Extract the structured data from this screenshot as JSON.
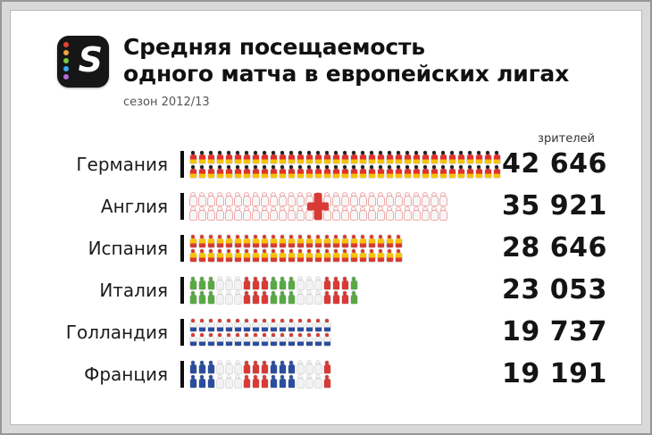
{
  "logo": {
    "letter": "S",
    "dot_colors": [
      "#e8432d",
      "#f2a33c",
      "#7ac943",
      "#3fa9f5",
      "#b96ad9"
    ]
  },
  "header": {
    "title_line1": "Средняя посещаемость",
    "title_line2": "одного матча в европейских лигах",
    "subtitle": "сезон 2012/13"
  },
  "chart_data": {
    "type": "bar",
    "variant": "pictogram",
    "title": "Средняя посещаемость одного матча в европейских лигах",
    "subtitle": "сезон 2012/13",
    "unit_label": "зрителей",
    "max_value": 42646,
    "icons_for_max": 35,
    "icon_rows_per_bar": 2,
    "rows": [
      {
        "country": "Германия",
        "value": 42646,
        "value_display": "42 646",
        "flag": {
          "type": "horizontal",
          "colors": [
            "#1f1f1f",
            "#e0312e",
            "#f8c300"
          ]
        }
      },
      {
        "country": "Англия",
        "value": 35921,
        "value_display": "35 921",
        "flag": {
          "type": "cross",
          "colors": [
            "#f7f7f7",
            "#d93a35"
          ]
        }
      },
      {
        "country": "Испания",
        "value": 28646,
        "value_display": "28 646",
        "flag": {
          "type": "horizontal",
          "colors": [
            "#d93a35",
            "#f8c300",
            "#d93a35"
          ]
        }
      },
      {
        "country": "Италия",
        "value": 23053,
        "value_display": "23 053",
        "flag": {
          "type": "vertical",
          "colors": [
            "#58a944",
            "#f2f2f2",
            "#d93a35"
          ]
        }
      },
      {
        "country": "Голландия",
        "value": 19737,
        "value_display": "19 737",
        "flag": {
          "type": "horizontal",
          "colors": [
            "#d93a35",
            "#f2f2f2",
            "#2b4da0"
          ]
        }
      },
      {
        "country": "Франция",
        "value": 19191,
        "value_display": "19 191",
        "flag": {
          "type": "vertical",
          "colors": [
            "#2b4da0",
            "#f2f2f2",
            "#d93a35"
          ]
        }
      }
    ]
  }
}
